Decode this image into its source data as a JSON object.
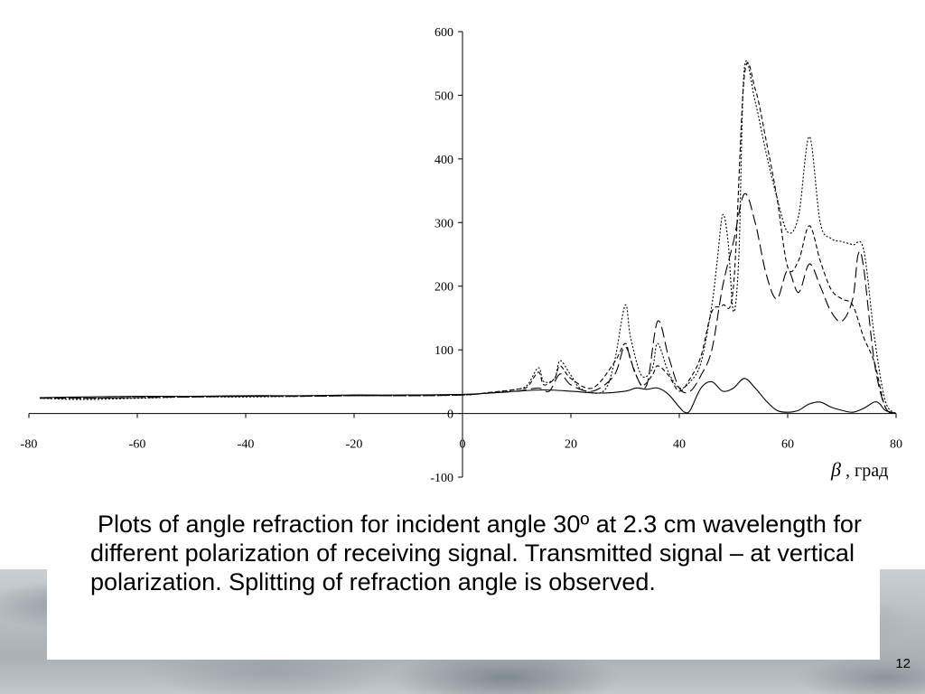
{
  "caption": "Plots of angle refraction for incident angle 30º at 2.3 cm wavelength for different polarization of receiving signal. Transmitted signal – at vertical polarization. Splitting of refraction angle is observed.",
  "slide_number": "12",
  "chart_data": {
    "type": "line",
    "title": "",
    "xlabel_symbol": "β",
    "xlabel": ", град",
    "ylabel": "",
    "xlim": [
      -80,
      80
    ],
    "ylim": [
      -100,
      600
    ],
    "x_ticks": [
      -80,
      -60,
      -40,
      -20,
      0,
      20,
      40,
      60,
      80
    ],
    "x_tick_labels": [
      "-80",
      "-60",
      "-40",
      "-20",
      "0",
      "20",
      "40",
      "60",
      "80"
    ],
    "y_ticks": [
      -100,
      0,
      100,
      200,
      300,
      400,
      500,
      600
    ],
    "y_tick_labels": [
      "-100",
      "0",
      "100",
      "200",
      "300",
      "400",
      "500",
      "600"
    ],
    "grid": false,
    "legend": "none",
    "series": [
      {
        "style": "solid",
        "color": "#000000",
        "points": [
          [
            -78,
            25
          ],
          [
            -70,
            26
          ],
          [
            -60,
            27
          ],
          [
            -50,
            27
          ],
          [
            -40,
            28
          ],
          [
            -30,
            28
          ],
          [
            -20,
            29
          ],
          [
            -10,
            29
          ],
          [
            0,
            30
          ],
          [
            5,
            32
          ],
          [
            10,
            35
          ],
          [
            15,
            37
          ],
          [
            20,
            35
          ],
          [
            25,
            32
          ],
          [
            30,
            35
          ],
          [
            32,
            40
          ],
          [
            34,
            38
          ],
          [
            36,
            40
          ],
          [
            38,
            30
          ],
          [
            40,
            10
          ],
          [
            41,
            2
          ],
          [
            42,
            5
          ],
          [
            44,
            40
          ],
          [
            46,
            50
          ],
          [
            48,
            35
          ],
          [
            50,
            40
          ],
          [
            52,
            55
          ],
          [
            54,
            40
          ],
          [
            56,
            20
          ],
          [
            58,
            5
          ],
          [
            60,
            2
          ],
          [
            62,
            5
          ],
          [
            64,
            15
          ],
          [
            66,
            18
          ],
          [
            68,
            10
          ],
          [
            70,
            5
          ],
          [
            72,
            2
          ],
          [
            74,
            8
          ],
          [
            76,
            18
          ],
          [
            77,
            15
          ],
          [
            78,
            5
          ],
          [
            80,
            0
          ]
        ]
      },
      {
        "style": "dot",
        "color": "#000000",
        "points": [
          [
            -78,
            24
          ],
          [
            -70,
            22
          ],
          [
            -60,
            24
          ],
          [
            -50,
            26
          ],
          [
            -40,
            26
          ],
          [
            -30,
            27
          ],
          [
            -20,
            28
          ],
          [
            -10,
            28
          ],
          [
            0,
            29
          ],
          [
            5,
            33
          ],
          [
            10,
            38
          ],
          [
            12,
            45
          ],
          [
            14,
            72
          ],
          [
            15,
            50
          ],
          [
            17,
            55
          ],
          [
            18,
            83
          ],
          [
            20,
            60
          ],
          [
            22,
            38
          ],
          [
            26,
            35
          ],
          [
            28,
            80
          ],
          [
            30,
            170
          ],
          [
            31,
            120
          ],
          [
            33,
            60
          ],
          [
            35,
            70
          ],
          [
            36,
            110
          ],
          [
            38,
            65
          ],
          [
            40,
            40
          ],
          [
            42,
            50
          ],
          [
            44,
            80
          ],
          [
            46,
            170
          ],
          [
            47,
            240
          ],
          [
            48,
            312
          ],
          [
            49,
            270
          ],
          [
            50,
            160
          ],
          [
            51,
            250
          ],
          [
            52,
            542
          ],
          [
            54,
            490
          ],
          [
            56,
            410
          ],
          [
            58,
            340
          ],
          [
            60,
            285
          ],
          [
            62,
            310
          ],
          [
            64,
            435
          ],
          [
            66,
            300
          ],
          [
            68,
            275
          ],
          [
            70,
            270
          ],
          [
            72,
            265
          ],
          [
            74,
            258
          ],
          [
            76,
            120
          ],
          [
            78,
            20
          ],
          [
            80,
            0
          ]
        ]
      },
      {
        "style": "short-dash",
        "color": "#000000",
        "points": [
          [
            -78,
            25
          ],
          [
            -70,
            24
          ],
          [
            -60,
            25
          ],
          [
            -50,
            26
          ],
          [
            -40,
            27
          ],
          [
            -30,
            27
          ],
          [
            -20,
            28
          ],
          [
            -10,
            28
          ],
          [
            0,
            29
          ],
          [
            5,
            33
          ],
          [
            10,
            38
          ],
          [
            12,
            42
          ],
          [
            14,
            65
          ],
          [
            15,
            45
          ],
          [
            17,
            55
          ],
          [
            18,
            75
          ],
          [
            20,
            55
          ],
          [
            24,
            40
          ],
          [
            28,
            80
          ],
          [
            30,
            110
          ],
          [
            31,
            85
          ],
          [
            33,
            45
          ],
          [
            35,
            60
          ],
          [
            36,
            75
          ],
          [
            38,
            60
          ],
          [
            40,
            35
          ],
          [
            42,
            55
          ],
          [
            44,
            90
          ],
          [
            46,
            160
          ],
          [
            48,
            170
          ],
          [
            50,
            200
          ],
          [
            52,
            530
          ],
          [
            54,
            510
          ],
          [
            56,
            430
          ],
          [
            58,
            340
          ],
          [
            60,
            230
          ],
          [
            62,
            240
          ],
          [
            64,
            295
          ],
          [
            66,
            240
          ],
          [
            68,
            195
          ],
          [
            70,
            180
          ],
          [
            72,
            170
          ],
          [
            74,
            120
          ],
          [
            76,
            80
          ],
          [
            78,
            10
          ],
          [
            80,
            0
          ]
        ]
      },
      {
        "style": "long-dash",
        "color": "#000000",
        "points": [
          [
            -78,
            24
          ],
          [
            -70,
            24
          ],
          [
            -60,
            25
          ],
          [
            -50,
            26
          ],
          [
            -40,
            27
          ],
          [
            -30,
            27
          ],
          [
            -20,
            28
          ],
          [
            -10,
            28
          ],
          [
            0,
            29
          ],
          [
            5,
            32
          ],
          [
            10,
            35
          ],
          [
            14,
            40
          ],
          [
            16,
            35
          ],
          [
            18,
            62
          ],
          [
            20,
            45
          ],
          [
            24,
            35
          ],
          [
            28,
            60
          ],
          [
            30,
            105
          ],
          [
            32,
            60
          ],
          [
            34,
            45
          ],
          [
            36,
            145
          ],
          [
            38,
            90
          ],
          [
            40,
            40
          ],
          [
            42,
            35
          ],
          [
            44,
            60
          ],
          [
            46,
            100
          ],
          [
            48,
            200
          ],
          [
            50,
            270
          ],
          [
            52,
            345
          ],
          [
            54,
            300
          ],
          [
            56,
            220
          ],
          [
            58,
            180
          ],
          [
            60,
            225
          ],
          [
            62,
            190
          ],
          [
            64,
            235
          ],
          [
            66,
            200
          ],
          [
            68,
            160
          ],
          [
            70,
            145
          ],
          [
            72,
            180
          ],
          [
            73,
            250
          ],
          [
            74,
            230
          ],
          [
            76,
            80
          ],
          [
            78,
            10
          ],
          [
            80,
            0
          ]
        ]
      }
    ]
  }
}
